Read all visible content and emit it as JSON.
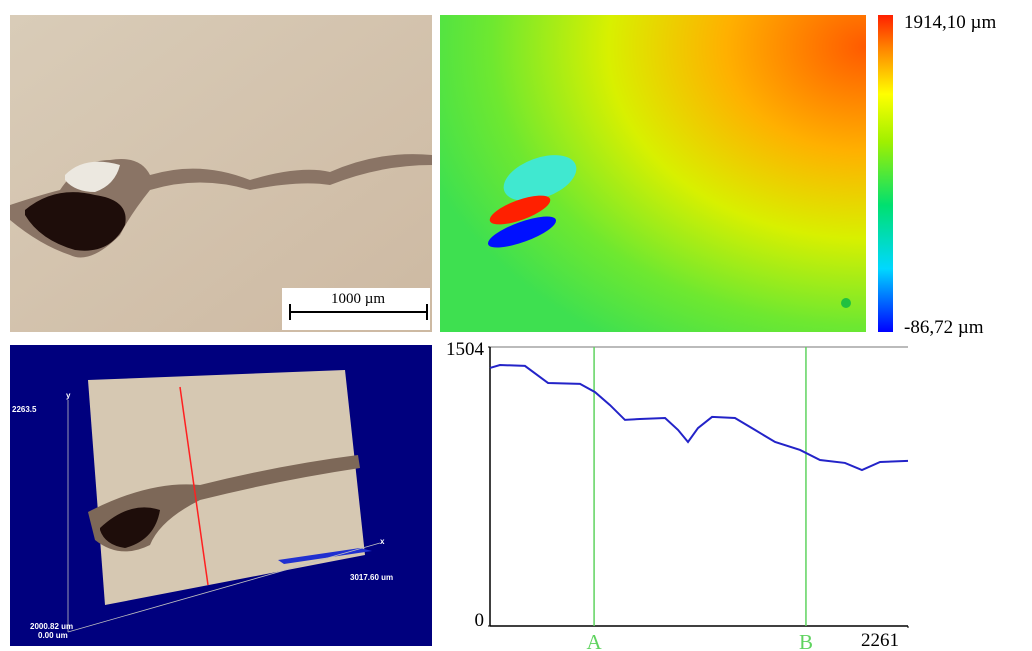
{
  "microscope": {
    "scale_label": "1000 µm"
  },
  "height_map": {
    "max_label": "1914,10  µm",
    "min_label": "-86,72  µm"
  },
  "view_3d": {
    "y_axis": "y",
    "x_axis": "x",
    "y_extent": "2263.5",
    "x_extent": "3017.60 um",
    "z_max": "2000.82 um",
    "z_min": "0.00 um"
  },
  "chart_data": {
    "type": "line",
    "x": [
      0,
      54,
      189,
      314,
      487,
      568,
      649,
      730,
      811,
      947,
      1017,
      1071,
      1125,
      1201,
      1325,
      1433,
      1542,
      1677,
      1785,
      1920,
      2012,
      2110,
      2261
    ],
    "values": [
      1391,
      1407,
      1402,
      1310,
      1305,
      1261,
      1191,
      1111,
      1116,
      1121,
      1057,
      992,
      1067,
      1127,
      1121,
      1057,
      992,
      949,
      895,
      879,
      841,
      884,
      890
    ],
    "color": "#2323c8",
    "xlim": [
      0,
      2261
    ],
    "ylim": [
      0,
      1504
    ],
    "xticks": [
      2261
    ],
    "yticks": [
      0,
      1504
    ],
    "annotations": [
      {
        "x": 563,
        "label": "A"
      },
      {
        "x": 1709,
        "label": "B"
      }
    ],
    "annotation_color": "#5fd35f"
  }
}
